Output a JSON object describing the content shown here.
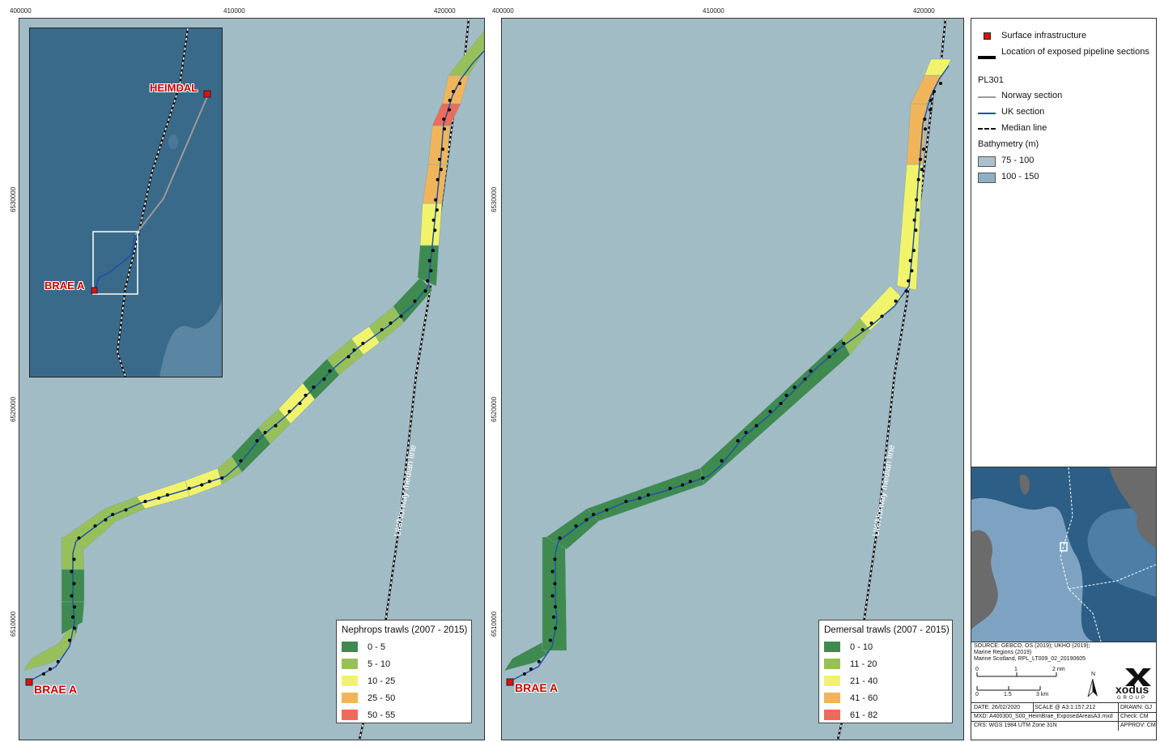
{
  "left_map": {
    "x_ticks": [
      "400000",
      "410000",
      "420000"
    ],
    "y_ticks": [
      "6530000",
      "6520000",
      "6510000"
    ],
    "labels": {
      "brae_a": "BRAE A",
      "median_line": "UK/Norway median line"
    },
    "inset": {
      "heimdal": "HEIMDAL",
      "brae_a": "BRAE A"
    },
    "legend": {
      "title": "Nephrops trawls (2007 - 2015)",
      "items": [
        {
          "label": "0 - 5",
          "color": "#3e8a4f"
        },
        {
          "label": "5 - 10",
          "color": "#98c05a"
        },
        {
          "label": "10 - 25",
          "color": "#f1f46a"
        },
        {
          "label": "25 - 50",
          "color": "#f0b55a"
        },
        {
          "label": "50 - 55",
          "color": "#ec6b5a"
        }
      ]
    }
  },
  "right_map": {
    "x_ticks": [
      "400000",
      "410000",
      "420000"
    ],
    "y_ticks": [
      "6530000",
      "6520000",
      "6510000"
    ],
    "labels": {
      "brae_a": "BRAE A",
      "median_line": "UK/Norway median line"
    },
    "legend": {
      "title": "Demersal trawls (2007 - 2015)",
      "items": [
        {
          "label": "0 - 10",
          "color": "#3e8a4f"
        },
        {
          "label": "11 - 20",
          "color": "#98c05a"
        },
        {
          "label": "21 - 40",
          "color": "#f1f46a"
        },
        {
          "label": "41 - 60",
          "color": "#f0b55a"
        },
        {
          "label": "61 - 82",
          "color": "#ec6b5a"
        }
      ]
    }
  },
  "key": {
    "surface_infrastructure": "Surface infrastructure",
    "exposed_sections": "Location of exposed pipeline sections",
    "pl301": "PL301",
    "norway_section": "Norway section",
    "uk_section": "UK section",
    "median_line": "Median line",
    "bathymetry": "Bathymetry (m)",
    "bathy_items": [
      {
        "label": "75 - 100",
        "color": "#a9c2cf"
      },
      {
        "label": "100 - 150",
        "color": "#8fb0c2"
      }
    ]
  },
  "info": {
    "source": "SOURCE: GEBCO, OS (2019); UKHO (2019);",
    "source2": "Marine Regions (2019)",
    "source3": "Marine Scotland, RPL_LT009_02_20190605",
    "scale_nm": [
      "0",
      "1",
      "2 nm"
    ],
    "scale_km": [
      "0",
      "1.5",
      "3 km"
    ],
    "north": "N",
    "logo": "xodus",
    "logo_sub": "GROUP",
    "date": "DATE: 26/02/2020",
    "scale": "SCALE @ A3:1:157,212",
    "drawn": "DRAWN: GJ",
    "mxd": "MXD: A400300_S00_HeimBrae_ExposedAreasA3.mxd",
    "check": "Check: CM",
    "crs": "CRS: WGS 1984 UTM Zone 31N",
    "approv": "APPROV: CM"
  },
  "colors": {
    "sea": "#a2bcc6",
    "inset_sea": "#3a6a8a",
    "uk_line": "#1f55a5",
    "norway_line": "#9a9a9a"
  }
}
